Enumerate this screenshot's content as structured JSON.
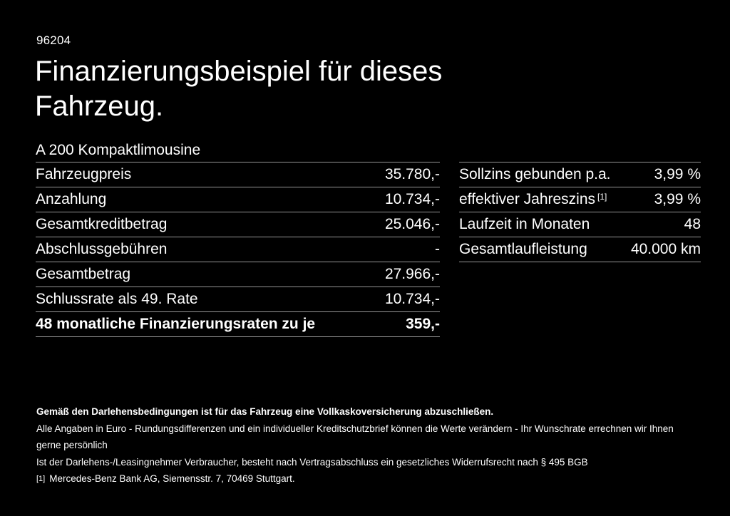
{
  "page": {
    "code": "96204",
    "title": "Finanzierungsbeispiel für dieses\nFahrzeug.",
    "subtitle": "A 200 Kompaktlimousine"
  },
  "colors": {
    "background": "#000000",
    "text": "#ffffff",
    "divider": "#969696"
  },
  "finance_table": {
    "rows": [
      {
        "label": "Fahrzeugpreis",
        "value": "35.780,-"
      },
      {
        "label": "Anzahlung",
        "value": "10.734,-"
      },
      {
        "label": "Gesamtkreditbetrag",
        "value": "25.046,-"
      },
      {
        "label": "Abschlussgebühren",
        "value": "-"
      },
      {
        "label": "Gesamtbetrag",
        "value": "27.966,-"
      },
      {
        "label": "Schlussrate als 49. Rate",
        "value": "10.734,-"
      },
      {
        "label": "48 monatliche Finanzierungsraten zu je",
        "value": "359,-"
      }
    ]
  },
  "conditions_table": {
    "rows": [
      {
        "label": "Sollzins gebunden p.a.",
        "superscript": "",
        "value": "3,99 %"
      },
      {
        "label": "effektiver Jahreszins",
        "superscript": "[1]",
        "value": "3,99 %"
      },
      {
        "label": "Laufzeit in Monaten",
        "superscript": "",
        "value": "48"
      },
      {
        "label": "Gesamtlaufleistung",
        "superscript": "",
        "value": "40.000 km"
      }
    ]
  },
  "footer": {
    "bold_note": "Gemäß den Darlehensbedingungen ist für das Fahrzeug eine Vollkaskoversicherung abzuschließen.",
    "note_line1": "Alle Angaben in Euro - Rundungsdifferenzen und ein individueller Kreditschutzbrief können die Werte verändern - Ihr Wunschrate errechnen wir Ihnen gerne persönlich",
    "note_line2": "Ist der Darlehens-/Leasingnehmer Verbraucher, besteht nach Vertragsabschluss ein gesetzliches Widerrufsrecht nach § 495 BGB",
    "footnote_marker": "[1]",
    "footnote_text": "Mercedes-Benz Bank AG, Siemensstr. 7, 70469 Stuttgart."
  }
}
